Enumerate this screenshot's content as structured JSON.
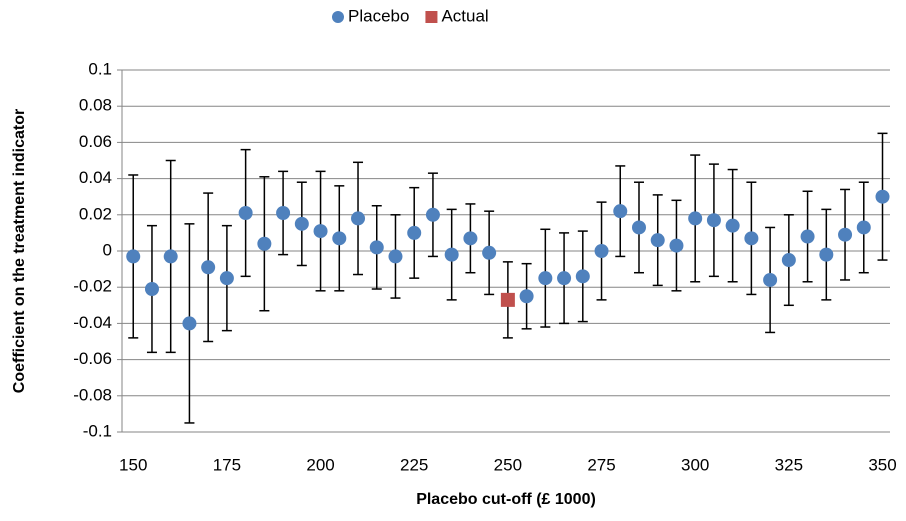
{
  "chart_data": {
    "type": "scatter",
    "xlabel": "Placebo cut-off (£ 1000)",
    "ylabel": "Coefficient on the treatment indicator",
    "xlim": [
      147,
      352
    ],
    "xticks": [
      150,
      175,
      200,
      225,
      250,
      275,
      300,
      325,
      350
    ],
    "ylim": [
      -0.1,
      0.1
    ],
    "yticks": [
      -0.1,
      -0.08,
      -0.06,
      -0.04,
      -0.02,
      0,
      0.02,
      0.04,
      0.06,
      0.08,
      0.1
    ],
    "grid": true,
    "legend": "top",
    "series": [
      {
        "name": "Placebo",
        "color": "#4f81bd",
        "marker": "circle",
        "x": [
          150,
          155,
          160,
          165,
          170,
          175,
          180,
          185,
          190,
          195,
          200,
          205,
          210,
          215,
          220,
          225,
          230,
          235,
          240,
          245,
          255,
          260,
          265,
          270,
          275,
          280,
          285,
          290,
          295,
          300,
          305,
          310,
          315,
          320,
          325,
          330,
          335,
          340,
          345,
          350
        ],
        "values": [
          -0.003,
          -0.021,
          -0.003,
          -0.04,
          -0.009,
          -0.015,
          0.021,
          0.004,
          0.021,
          0.015,
          0.011,
          0.007,
          0.018,
          0.002,
          -0.003,
          0.01,
          0.02,
          -0.002,
          0.007,
          -0.001,
          -0.025,
          -0.015,
          -0.015,
          -0.014,
          0,
          0.022,
          0.013,
          0.006,
          0.003,
          0.018,
          0.017,
          0.014,
          0.007,
          -0.016,
          -0.005,
          0.008,
          -0.002,
          0.009,
          0.013,
          0.03
        ],
        "errors": [
          0.045,
          0.035,
          0.053,
          0.055,
          0.041,
          0.029,
          0.035,
          0.037,
          0.023,
          0.023,
          0.033,
          0.029,
          0.031,
          0.023,
          0.023,
          0.025,
          0.023,
          0.025,
          0.019,
          0.023,
          0.018,
          0.027,
          0.025,
          0.025,
          0.027,
          0.025,
          0.025,
          0.025,
          0.025,
          0.035,
          0.031,
          0.031,
          0.031,
          0.029,
          0.025,
          0.025,
          0.025,
          0.025,
          0.025,
          0.035
        ]
      },
      {
        "name": "Actual",
        "color": "#c0504d",
        "marker": "square",
        "x": [
          250
        ],
        "values": [
          -0.027
        ],
        "errors": [
          0.021
        ]
      }
    ]
  }
}
